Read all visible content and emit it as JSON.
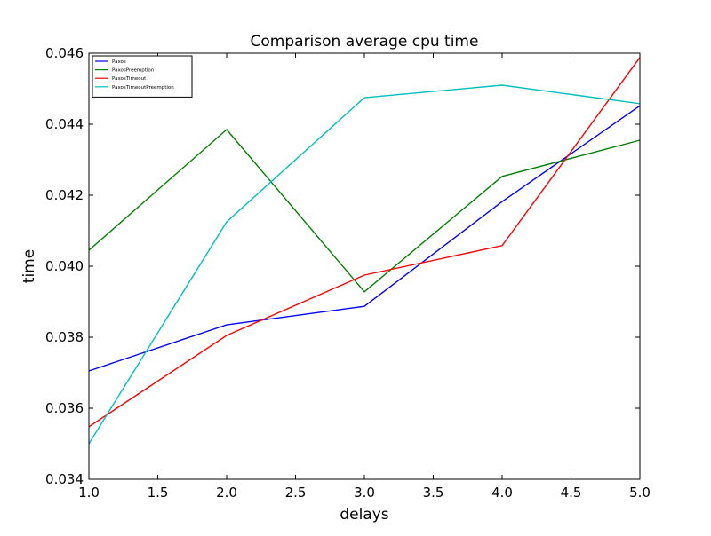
{
  "colors": {
    "background": "#ffffff",
    "axes": "#000000",
    "legend_border": "#000000"
  },
  "chart_data": {
    "type": "line",
    "title": "Comparison average cpu time",
    "xlabel": "delays",
    "ylabel": "time",
    "xlim": [
      1.0,
      5.0
    ],
    "ylim": [
      0.034,
      0.046
    ],
    "x_tick_values": [
      1.0,
      1.5,
      2.0,
      2.5,
      3.0,
      3.5,
      4.0,
      4.5,
      5.0
    ],
    "x_tick_labels": [
      "1.0",
      "1.5",
      "2.0",
      "2.5",
      "3.0",
      "3.5",
      "4.0",
      "4.5",
      "5.0"
    ],
    "y_tick_values": [
      0.034,
      0.036,
      0.038,
      0.04,
      0.042,
      0.044,
      0.046
    ],
    "y_tick_labels": [
      "0.034",
      "0.036",
      "0.038",
      "0.040",
      "0.042",
      "0.044",
      "0.046"
    ],
    "grid": false,
    "legend_position": "top-left",
    "x": [
      1,
      2,
      3,
      4,
      5
    ],
    "series": [
      {
        "name": "Paxos",
        "color": "#0000ff",
        "values": [
          0.03705,
          0.03835,
          0.03887,
          0.04182,
          0.04452
        ]
      },
      {
        "name": "PaxosPreemption",
        "color": "#008000",
        "values": [
          0.04045,
          0.04385,
          0.03928,
          0.04253,
          0.04355
        ]
      },
      {
        "name": "PaxosTimeout",
        "color": "#ff0000",
        "values": [
          0.03548,
          0.03805,
          0.03975,
          0.04058,
          0.04588
        ]
      },
      {
        "name": "PaxosTimeoutPreemption",
        "color": "#00bfbf",
        "values": [
          0.035,
          0.04125,
          0.04475,
          0.0451,
          0.04458
        ]
      }
    ]
  }
}
